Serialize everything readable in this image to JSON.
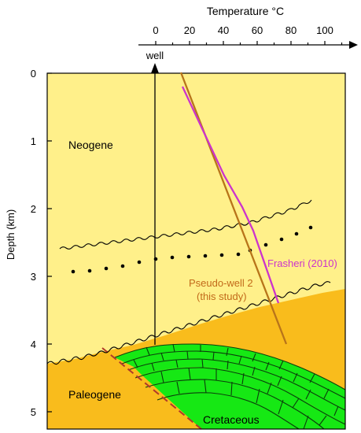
{
  "figure": {
    "temperature_axis": {
      "title": "Temperature °C",
      "ticks": [
        "0",
        "20",
        "40",
        "60",
        "80",
        "100"
      ]
    },
    "depth_axis": {
      "title": "Depth (km)",
      "ticks": [
        "0",
        "1",
        "2",
        "3",
        "4",
        "5"
      ]
    },
    "well_label": "well",
    "units": {
      "neogene": "Neogene",
      "paleogene": "Paleogene",
      "cretaceous": "Cretaceous"
    },
    "profiles": {
      "frasheri": "Frasheri (2010)",
      "pseudo_well_line1": "Pseudo-well 2",
      "pseudo_well_line2": "(this study)"
    },
    "colors": {
      "neogene_fill": "#fff08a",
      "paleogene_fill": "#f9bc1c",
      "cretaceous_fill": "#16e814",
      "frasheri_line": "#cc33cc",
      "pseudo_well_line": "#b8741a",
      "fault_line": "#b0392a",
      "frasheri_text": "#cc33cc",
      "pseudo_text": "#c26a1a"
    }
  }
}
